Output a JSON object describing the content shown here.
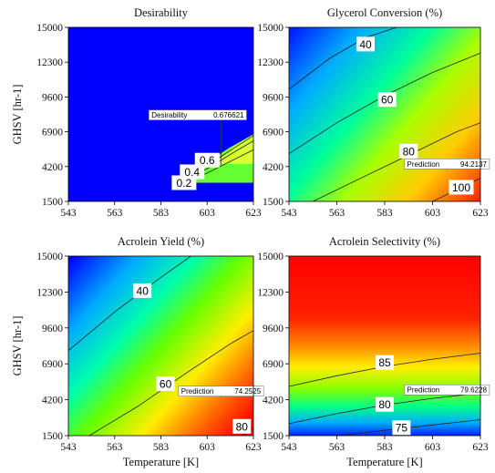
{
  "chart_data": [
    {
      "type": "heatmap",
      "title": "Desirability",
      "xlabel": "",
      "ylabel": "GHSV [hr-1]",
      "x_ticks": [
        "543",
        "563",
        "583",
        "603",
        "623"
      ],
      "y_ticks": [
        "1500",
        "4200",
        "6900",
        "9600",
        "12300",
        "15000"
      ],
      "xlim": [
        543,
        623
      ],
      "ylim": [
        1500,
        15000
      ],
      "contours": [
        {
          "label": "0.2",
          "points": [
            [
              593,
              2950
            ],
            [
              603,
              3700
            ],
            [
              613,
              4600
            ],
            [
              623,
              5500
            ]
          ]
        },
        {
          "label": "0.4",
          "points": [
            [
              596,
              3300
            ],
            [
              605,
              4250
            ],
            [
              614,
              5250
            ],
            [
              623,
              6200
            ]
          ]
        },
        {
          "label": "0.6",
          "points": [
            [
              599,
              3900
            ],
            [
              608,
              4850
            ],
            [
              616,
              5800
            ],
            [
              623,
              6600
            ]
          ]
        }
      ],
      "contour_label_positions": [
        {
          "label": "0.2",
          "x": 593,
          "y": 2950
        },
        {
          "label": "0.4",
          "x": 596.5,
          "y": 3800
        },
        {
          "label": "0.6",
          "x": 603,
          "y": 4700
        }
      ],
      "prediction": {
        "label": "Desirability",
        "value": "0.676621",
        "x": 609,
        "y": 4350
      }
    },
    {
      "type": "heatmap",
      "title": "Glycerol Conversion (%)",
      "xlabel": "",
      "ylabel": "",
      "x_ticks": [
        "543",
        "563",
        "583",
        "603",
        "623"
      ],
      "y_ticks": [
        "1500",
        "4200",
        "6900",
        "9600",
        "12300",
        "15000"
      ],
      "xlim": [
        543,
        623
      ],
      "ylim": [
        1500,
        15000
      ],
      "color_range": [
        25,
        105
      ],
      "contours": [
        {
          "label": "40",
          "points": [
            [
              543,
              10200
            ],
            [
              560,
              12600
            ],
            [
              575,
              14200
            ],
            [
              588,
              15000
            ]
          ]
        },
        {
          "label": "60",
          "points": [
            [
              543,
              5200
            ],
            [
              563,
              7600
            ],
            [
              583,
              9700
            ],
            [
              603,
              11500
            ],
            [
              623,
              13000
            ]
          ]
        },
        {
          "label": "80",
          "points": [
            [
              553,
              1500
            ],
            [
              573,
              3300
            ],
            [
              593,
              5100
            ],
            [
              613,
              6900
            ],
            [
              623,
              7600
            ]
          ]
        },
        {
          "label": "100",
          "points": [
            [
              603,
              1500
            ],
            [
              613,
              2400
            ],
            [
              623,
              3300
            ]
          ]
        }
      ],
      "contour_label_positions": [
        {
          "label": "40",
          "x": 575,
          "y": 13700
        },
        {
          "label": "60",
          "x": 584,
          "y": 9400
        },
        {
          "label": "80",
          "x": 593,
          "y": 5400
        },
        {
          "label": "100",
          "x": 615,
          "y": 2600
        }
      ],
      "prediction": {
        "label": "Prediction",
        "value": "94.2137",
        "x": 609,
        "y": 3950
      }
    },
    {
      "type": "heatmap",
      "title": "Acrolein Yield (%)",
      "xlabel": "Temperature [K]",
      "ylabel": "GHSV [hr-1]",
      "x_ticks": [
        "543",
        "563",
        "583",
        "603",
        "623"
      ],
      "y_ticks": [
        "1500",
        "4200",
        "6900",
        "9600",
        "12300",
        "15000"
      ],
      "xlim": [
        543,
        623
      ],
      "ylim": [
        1500,
        15000
      ],
      "color_range": [
        20,
        90
      ],
      "contours": [
        {
          "label": "40",
          "points": [
            [
              543,
              7900
            ],
            [
              563,
              10800
            ],
            [
              583,
              13400
            ],
            [
              596,
              15000
            ]
          ]
        },
        {
          "label": "60",
          "points": [
            [
              552,
              1500
            ],
            [
              573,
              3700
            ],
            [
              593,
              6100
            ],
            [
              613,
              8400
            ],
            [
              623,
              9400
            ]
          ]
        },
        {
          "label": "80",
          "points": [
            [
              618,
              1500
            ],
            [
              623,
              2000
            ]
          ]
        }
      ],
      "contour_label_positions": [
        {
          "label": "40",
          "x": 575,
          "y": 12400
        },
        {
          "label": "60",
          "x": 585,
          "y": 5400
        },
        {
          "label": "80",
          "x": 618,
          "y": 2200
        }
      ],
      "prediction": {
        "label": "Prediction",
        "value": "74.2525",
        "x": 609,
        "y": 4400
      }
    },
    {
      "type": "heatmap",
      "title": "Acrolein Selectivity (%)",
      "xlabel": "Temperature [K]",
      "ylabel": "",
      "x_ticks": [
        "543",
        "563",
        "583",
        "603",
        "623"
      ],
      "y_ticks": [
        "1500",
        "4200",
        "6900",
        "9600",
        "12300",
        "15000"
      ],
      "xlim": [
        543,
        623
      ],
      "ylim": [
        1500,
        15000
      ],
      "color_range": [
        72,
        88
      ],
      "contours": [
        {
          "label": "85",
          "points": [
            [
              543,
              5200
            ],
            [
              563,
              6000
            ],
            [
              583,
              6700
            ],
            [
              603,
              7250
            ],
            [
              623,
              7700
            ]
          ]
        },
        {
          "label": "80",
          "points": [
            [
              543,
              2400
            ],
            [
              563,
              3150
            ],
            [
              583,
              3800
            ],
            [
              603,
              4300
            ],
            [
              623,
              4700
            ]
          ]
        },
        {
          "label": "75",
          "points": [
            [
              563,
              1500
            ],
            [
              583,
              1900
            ],
            [
              603,
              2300
            ],
            [
              623,
              2700
            ]
          ]
        }
      ],
      "contour_label_positions": [
        {
          "label": "85",
          "x": 583,
          "y": 7000
        },
        {
          "label": "80",
          "x": 583,
          "y": 3850
        },
        {
          "label": "75",
          "x": 590,
          "y": 2100
        }
      ],
      "prediction": {
        "label": "Prediction",
        "value": "79.6228",
        "x": 609,
        "y": 4500
      }
    }
  ]
}
